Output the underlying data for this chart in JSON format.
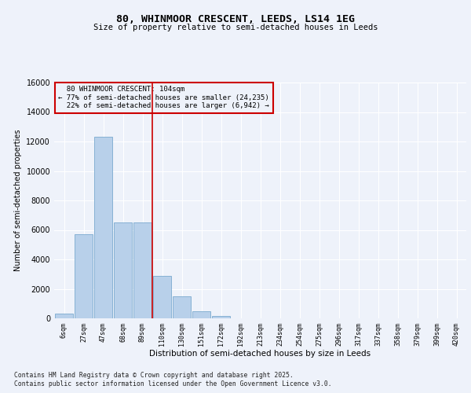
{
  "title_line1": "80, WHINMOOR CRESCENT, LEEDS, LS14 1EG",
  "title_line2": "Size of property relative to semi-detached houses in Leeds",
  "xlabel": "Distribution of semi-detached houses by size in Leeds",
  "ylabel": "Number of semi-detached properties",
  "footer_line1": "Contains HM Land Registry data © Crown copyright and database right 2025.",
  "footer_line2": "Contains public sector information licensed under the Open Government Licence v3.0.",
  "categories": [
    "6sqm",
    "27sqm",
    "47sqm",
    "68sqm",
    "89sqm",
    "110sqm",
    "130sqm",
    "151sqm",
    "172sqm",
    "192sqm",
    "213sqm",
    "234sqm",
    "254sqm",
    "275sqm",
    "296sqm",
    "317sqm",
    "337sqm",
    "358sqm",
    "379sqm",
    "399sqm",
    "420sqm"
  ],
  "values": [
    300,
    5700,
    12300,
    6500,
    6500,
    2900,
    1500,
    500,
    150,
    0,
    0,
    0,
    0,
    0,
    0,
    0,
    0,
    0,
    0,
    0,
    0
  ],
  "bar_color": "#b8d0ea",
  "bar_edge_color": "#7aaacf",
  "property_label": "80 WHINMOOR CRESCENT: 104sqm",
  "pct_smaller": 77,
  "count_smaller": 24235,
  "pct_larger": 22,
  "count_larger": 6942,
  "vline_color": "#cc0000",
  "vline_x_index": 5.0,
  "background_color": "#eef2fa",
  "grid_color": "#ffffff",
  "ylim": [
    0,
    16000
  ],
  "yticks": [
    0,
    2000,
    4000,
    6000,
    8000,
    10000,
    12000,
    14000,
    16000
  ]
}
